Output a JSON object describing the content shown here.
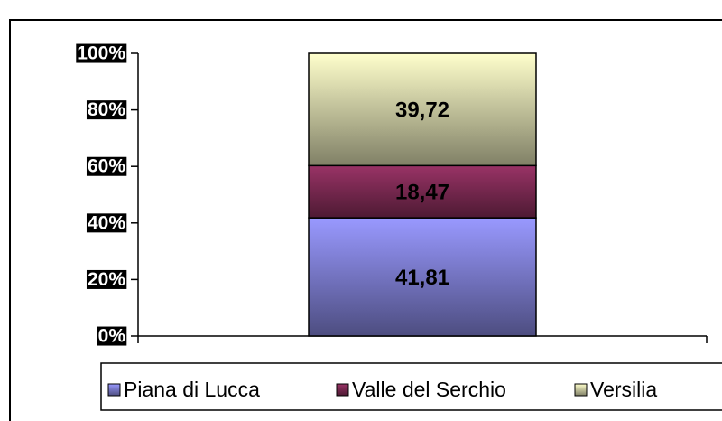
{
  "chart_data": {
    "type": "stacked_bar",
    "categories": [
      null
    ],
    "series": [
      {
        "name": "Piana di Lucca",
        "color": "#9999ff",
        "values": [
          41.81
        ],
        "value_labels": [
          "41,81"
        ]
      },
      {
        "name": "Valle del Serchio",
        "color": "#993366",
        "values": [
          18.47
        ],
        "value_labels": [
          "18,47"
        ]
      },
      {
        "name": "Versilia",
        "color": "#ffffcc",
        "values": [
          39.72
        ],
        "value_labels": [
          "39,72"
        ]
      }
    ],
    "ylim": [
      0,
      100
    ],
    "yticks": [
      {
        "value": 0,
        "label": "0%"
      },
      {
        "value": 20,
        "label": "20%"
      },
      {
        "value": 40,
        "label": "40%"
      },
      {
        "value": 60,
        "label": "60%"
      },
      {
        "value": 80,
        "label": "80%"
      },
      {
        "value": 100,
        "label": "100%"
      }
    ],
    "legend": "bottom"
  }
}
